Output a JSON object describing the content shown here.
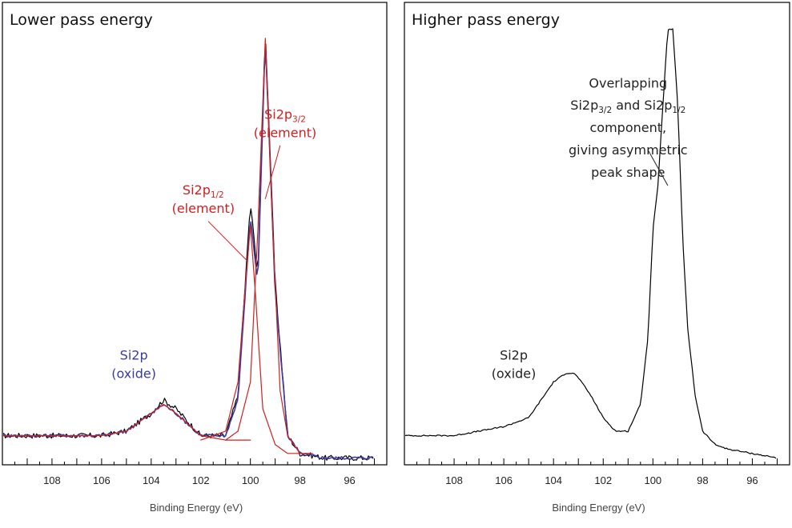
{
  "chart_data": [
    {
      "type": "line",
      "title": "Lower pass energy",
      "xlabel": "Binding Energy (eV)",
      "ylabel": "",
      "xlim": [
        110,
        94.5
      ],
      "ylim": [
        0,
        1.0
      ],
      "x_reversed": true,
      "xticks": [
        108,
        106,
        104,
        102,
        100,
        98,
        96
      ],
      "grid": false,
      "peaks": [
        {
          "name": "Si2p oxide",
          "center": 103.5,
          "height": 0.13
        },
        {
          "name": "Si2p1/2 element",
          "center": 100.0,
          "height": 0.53
        },
        {
          "name": "Si2p3/2 element",
          "center": 99.4,
          "height": 0.95
        }
      ],
      "series": [
        {
          "name": "",
          "color": "#000000",
          "style": "noisy-envelope",
          "x": [
            110,
            108,
            106,
            105,
            104,
            103.5,
            103,
            102,
            101,
            100.5,
            100.0,
            99.7,
            99.4,
            99.0,
            98.5,
            98,
            97,
            96,
            95
          ],
          "y": [
            0.06,
            0.06,
            0.06,
            0.07,
            0.11,
            0.14,
            0.12,
            0.06,
            0.06,
            0.15,
            0.58,
            0.42,
            0.97,
            0.4,
            0.06,
            0.02,
            0.01,
            0.01,
            0.01
          ]
        },
        {
          "name": "",
          "color": "#3a3aa0",
          "style": "envelope-fit",
          "x": [
            110,
            108,
            106,
            105,
            104,
            103.5,
            103,
            102,
            101,
            100.5,
            100.0,
            99.7,
            99.4,
            99.0,
            98.5,
            98,
            97,
            96,
            95
          ],
          "y": [
            0.06,
            0.06,
            0.06,
            0.07,
            0.11,
            0.13,
            0.11,
            0.06,
            0.06,
            0.14,
            0.55,
            0.4,
            0.95,
            0.38,
            0.06,
            0.02,
            0.01,
            0.01,
            0.01
          ]
        },
        {
          "name": "",
          "color": "#d02020",
          "style": "component",
          "x": [
            110,
            108,
            106,
            105,
            104,
            103.5,
            103,
            102,
            101,
            100
          ],
          "y": [
            0.06,
            0.06,
            0.06,
            0.07,
            0.11,
            0.13,
            0.11,
            0.06,
            0.05,
            0.05
          ]
        },
        {
          "name": "",
          "color": "#d02020",
          "style": "component",
          "x": [
            102,
            101,
            100.5,
            100.2,
            100.0,
            99.8,
            99.5,
            99,
            98.5,
            98
          ],
          "y": [
            0.05,
            0.07,
            0.18,
            0.4,
            0.53,
            0.38,
            0.12,
            0.04,
            0.02,
            0.02
          ]
        },
        {
          "name": "",
          "color": "#d02020",
          "style": "component",
          "x": [
            101,
            100.5,
            100,
            99.7,
            99.4,
            99.1,
            98.8,
            98.5,
            98,
            97.5
          ],
          "y": [
            0.05,
            0.07,
            0.18,
            0.52,
            0.95,
            0.52,
            0.16,
            0.06,
            0.02,
            0.02
          ]
        }
      ],
      "annotations": [
        {
          "text": "Si2p",
          "color": "#3a3aa0",
          "x": 104.7,
          "y": 0.23,
          "line2": "(oxide)"
        },
        {
          "text": "Si2p",
          "sub": "1/2",
          "line2": "(element)",
          "color": "#d02020",
          "x": 101.9,
          "y": 0.6,
          "leader_to": [
            100.1,
            0.45
          ]
        },
        {
          "text": "Si2p",
          "sub": "3/2",
          "line2": "(element)",
          "color": "#d02020",
          "x": 98.6,
          "y": 0.77,
          "leader_to": [
            99.4,
            0.59
          ]
        }
      ]
    },
    {
      "type": "line",
      "title": "Higher pass energy",
      "xlabel": "Binding Energy (eV)",
      "ylabel": "",
      "xlim": [
        110,
        94.5
      ],
      "ylim": [
        0,
        1.0
      ],
      "x_reversed": true,
      "xticks": [
        108,
        106,
        104,
        102,
        100,
        98,
        96
      ],
      "grid": false,
      "series": [
        {
          "name": "",
          "color": "#000000",
          "style": "spectrum",
          "x": [
            110,
            108,
            107,
            106,
            105,
            104.5,
            104,
            103.5,
            103.2,
            103,
            102.5,
            102,
            101.5,
            101,
            100.5,
            100.2,
            100,
            99.8,
            99.6,
            99.4,
            99.2,
            99,
            98.8,
            98.6,
            98.3,
            98,
            97.5,
            97,
            96,
            95
          ],
          "y": [
            0.06,
            0.06,
            0.07,
            0.08,
            0.1,
            0.14,
            0.18,
            0.2,
            0.2,
            0.19,
            0.15,
            0.1,
            0.07,
            0.07,
            0.13,
            0.28,
            0.52,
            0.62,
            0.8,
            0.97,
            0.97,
            0.8,
            0.5,
            0.3,
            0.15,
            0.07,
            0.04,
            0.03,
            0.02,
            0.01
          ]
        }
      ],
      "annotations": [
        {
          "text": "Overlapping",
          "color": "#222222",
          "x": 101.0,
          "y": 0.84
        },
        {
          "text": "Si2p",
          "sub": "3/2",
          "text2": " and Si2p",
          "sub2": "1/2",
          "color": "#222222",
          "x": 101.0,
          "y": 0.79
        },
        {
          "text": "component,",
          "color": "#222222",
          "x": 101.0,
          "y": 0.74
        },
        {
          "text": "giving asymmetric",
          "color": "#222222",
          "x": 101.0,
          "y": 0.69
        },
        {
          "text": "peak shape",
          "color": "#222222",
          "x": 101.0,
          "y": 0.64,
          "leader_from": [
            100.2,
            0.7
          ],
          "leader_to": [
            99.4,
            0.62
          ]
        },
        {
          "text": "Si2p",
          "color": "#222222",
          "x": 105.6,
          "y": 0.23,
          "line2": "(oxide)"
        }
      ]
    }
  ]
}
